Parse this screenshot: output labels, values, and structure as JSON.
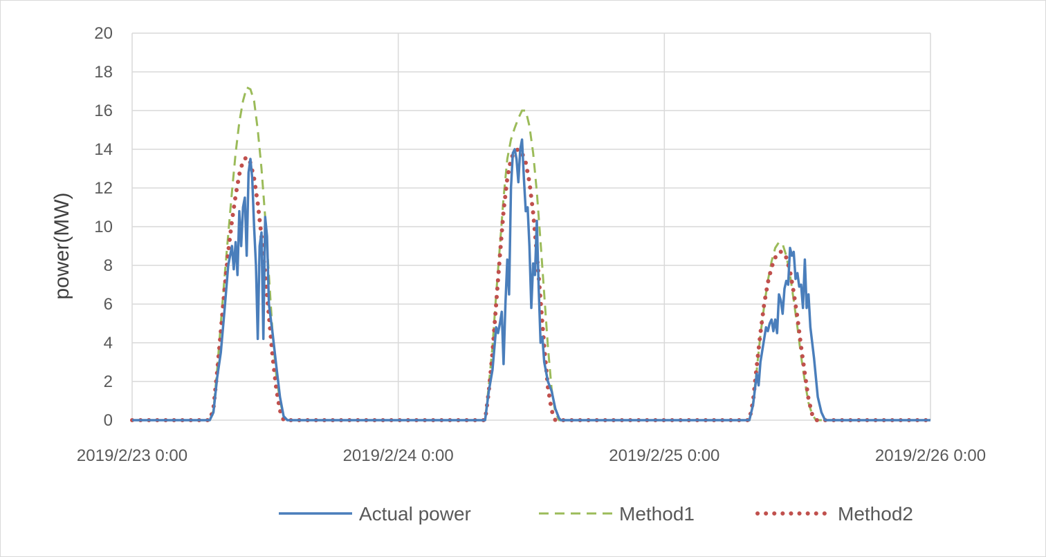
{
  "chart_data": {
    "type": "line",
    "title": "",
    "xlabel": "",
    "ylabel": "power(MW)",
    "ylim": [
      0,
      20
    ],
    "yticks": [
      "0",
      "2",
      "4",
      "6",
      "8",
      "10",
      "12",
      "14",
      "16",
      "18",
      "20"
    ],
    "xlim": [
      "2019-02-23T00:00",
      "2019-02-26T00:00"
    ],
    "xticks": [
      "2019/2/23 0:00",
      "2019/2/24 0:00",
      "2019/2/25 0:00",
      "2019/2/26 0:00"
    ],
    "grid": true,
    "legend_position": "bottom",
    "colors": {
      "actual": "#4a7ebb",
      "method1": "#9bbb59",
      "method2": "#c0504d",
      "grid": "#d9d9d9"
    },
    "series": [
      {
        "key": "actual",
        "name": "Actual power",
        "style": "solid",
        "points": [
          [
            "2019-02-23T00:00",
            0
          ],
          [
            "2019-02-23T07:00",
            0
          ],
          [
            "2019-02-23T07:20",
            0.4
          ],
          [
            "2019-02-23T07:40",
            2.2
          ],
          [
            "2019-02-23T08:00",
            3.5
          ],
          [
            "2019-02-23T08:20",
            5.7
          ],
          [
            "2019-02-23T08:40",
            8.0
          ],
          [
            "2019-02-23T09:00",
            9.0
          ],
          [
            "2019-02-23T09:10",
            7.8
          ],
          [
            "2019-02-23T09:20",
            9.2
          ],
          [
            "2019-02-23T09:30",
            7.5
          ],
          [
            "2019-02-23T09:40",
            10.8
          ],
          [
            "2019-02-23T09:50",
            9.0
          ],
          [
            "2019-02-23T10:00",
            11.0
          ],
          [
            "2019-02-23T10:10",
            11.5
          ],
          [
            "2019-02-23T10:20",
            8.5
          ],
          [
            "2019-02-23T10:30",
            12.8
          ],
          [
            "2019-02-23T10:40",
            13.5
          ],
          [
            "2019-02-23T10:50",
            12.5
          ],
          [
            "2019-02-23T11:00",
            10.0
          ],
          [
            "2019-02-23T11:10",
            8.0
          ],
          [
            "2019-02-23T11:20",
            4.2
          ],
          [
            "2019-02-23T11:30",
            9.0
          ],
          [
            "2019-02-23T11:40",
            9.7
          ],
          [
            "2019-02-23T11:50",
            4.2
          ],
          [
            "2019-02-23T12:00",
            10.5
          ],
          [
            "2019-02-23T12:10",
            9.5
          ],
          [
            "2019-02-23T12:20",
            6.0
          ],
          [
            "2019-02-23T12:40",
            4.5
          ],
          [
            "2019-02-23T13:00",
            2.8
          ],
          [
            "2019-02-23T13:20",
            1.2
          ],
          [
            "2019-02-23T13:40",
            0.2
          ],
          [
            "2019-02-23T14:00",
            0
          ],
          [
            "2019-02-24T07:50",
            0
          ],
          [
            "2019-02-24T08:10",
            1.5
          ],
          [
            "2019-02-24T08:30",
            2.6
          ],
          [
            "2019-02-24T08:50",
            4.8
          ],
          [
            "2019-02-24T09:00",
            4.5
          ],
          [
            "2019-02-24T09:10",
            5.0
          ],
          [
            "2019-02-24T09:20",
            5.6
          ],
          [
            "2019-02-24T09:30",
            2.9
          ],
          [
            "2019-02-24T09:40",
            6.0
          ],
          [
            "2019-02-24T09:50",
            8.3
          ],
          [
            "2019-02-24T10:00",
            6.5
          ],
          [
            "2019-02-24T10:10",
            12.0
          ],
          [
            "2019-02-24T10:20",
            13.8
          ],
          [
            "2019-02-24T10:30",
            14.0
          ],
          [
            "2019-02-24T10:40",
            13.5
          ],
          [
            "2019-02-24T10:50",
            12.3
          ],
          [
            "2019-02-24T11:00",
            14.0
          ],
          [
            "2019-02-24T11:10",
            14.5
          ],
          [
            "2019-02-24T11:20",
            12.5
          ],
          [
            "2019-02-24T11:30",
            10.8
          ],
          [
            "2019-02-24T11:40",
            11.0
          ],
          [
            "2019-02-24T11:50",
            9.0
          ],
          [
            "2019-02-24T12:00",
            5.8
          ],
          [
            "2019-02-24T12:10",
            8.1
          ],
          [
            "2019-02-24T12:20",
            7.5
          ],
          [
            "2019-02-24T12:30",
            10.3
          ],
          [
            "2019-02-24T12:40",
            6.8
          ],
          [
            "2019-02-24T12:50",
            4.0
          ],
          [
            "2019-02-24T13:00",
            4.3
          ],
          [
            "2019-02-24T13:10",
            3.0
          ],
          [
            "2019-02-24T13:30",
            2.0
          ],
          [
            "2019-02-24T13:50",
            1.5
          ],
          [
            "2019-02-24T14:10",
            0.6
          ],
          [
            "2019-02-24T14:30",
            0.1
          ],
          [
            "2019-02-24T14:40",
            0
          ],
          [
            "2019-02-25T07:40",
            0
          ],
          [
            "2019-02-25T08:00",
            0.8
          ],
          [
            "2019-02-25T08:20",
            2.4
          ],
          [
            "2019-02-25T08:30",
            1.8
          ],
          [
            "2019-02-25T08:40",
            3.0
          ],
          [
            "2019-02-25T09:00",
            4.2
          ],
          [
            "2019-02-25T09:10",
            4.8
          ],
          [
            "2019-02-25T09:20",
            4.6
          ],
          [
            "2019-02-25T09:30",
            5.0
          ],
          [
            "2019-02-25T09:40",
            5.2
          ],
          [
            "2019-02-25T09:50",
            4.6
          ],
          [
            "2019-02-25T10:00",
            5.2
          ],
          [
            "2019-02-25T10:10",
            4.5
          ],
          [
            "2019-02-25T10:20",
            6.5
          ],
          [
            "2019-02-25T10:30",
            6.2
          ],
          [
            "2019-02-25T10:40",
            5.5
          ],
          [
            "2019-02-25T10:50",
            6.8
          ],
          [
            "2019-02-25T11:00",
            7.2
          ],
          [
            "2019-02-25T11:10",
            7.0
          ],
          [
            "2019-02-25T11:20",
            8.9
          ],
          [
            "2019-02-25T11:30",
            8.5
          ],
          [
            "2019-02-25T11:40",
            8.7
          ],
          [
            "2019-02-25T11:50",
            7.3
          ],
          [
            "2019-02-25T12:00",
            7.6
          ],
          [
            "2019-02-25T12:10",
            6.9
          ],
          [
            "2019-02-25T12:20",
            7.0
          ],
          [
            "2019-02-25T12:30",
            5.8
          ],
          [
            "2019-02-25T12:40",
            8.3
          ],
          [
            "2019-02-25T12:50",
            5.8
          ],
          [
            "2019-02-25T13:00",
            6.5
          ],
          [
            "2019-02-25T13:10",
            4.8
          ],
          [
            "2019-02-25T13:30",
            3.2
          ],
          [
            "2019-02-25T13:50",
            1.2
          ],
          [
            "2019-02-25T14:10",
            0.4
          ],
          [
            "2019-02-25T14:30",
            0
          ],
          [
            "2019-02-26T00:00",
            0
          ]
        ]
      },
      {
        "key": "method1",
        "name": "Method1",
        "style": "dashed",
        "points": [
          [
            "2019-02-23T00:00",
            0
          ],
          [
            "2019-02-23T07:00",
            0
          ],
          [
            "2019-02-23T07:20",
            0.5
          ],
          [
            "2019-02-23T07:40",
            2.6
          ],
          [
            "2019-02-23T08:00",
            5.0
          ],
          [
            "2019-02-23T08:20",
            7.4
          ],
          [
            "2019-02-23T08:40",
            9.6
          ],
          [
            "2019-02-23T09:00",
            11.8
          ],
          [
            "2019-02-23T09:20",
            13.8
          ],
          [
            "2019-02-23T09:40",
            15.4
          ],
          [
            "2019-02-23T10:00",
            16.5
          ],
          [
            "2019-02-23T10:20",
            17.2
          ],
          [
            "2019-02-23T10:40",
            17.1
          ],
          [
            "2019-02-23T11:00",
            16.5
          ],
          [
            "2019-02-23T11:20",
            15.0
          ],
          [
            "2019-02-23T11:40",
            13.0
          ],
          [
            "2019-02-23T12:00",
            10.5
          ],
          [
            "2019-02-23T12:20",
            7.5
          ],
          [
            "2019-02-23T12:40",
            4.5
          ],
          [
            "2019-02-23T13:00",
            2.3
          ],
          [
            "2019-02-23T13:20",
            1.0
          ],
          [
            "2019-02-23T13:40",
            0.2
          ],
          [
            "2019-02-23T14:00",
            0
          ],
          [
            "2019-02-24T07:50",
            0
          ],
          [
            "2019-02-24T08:10",
            1.8
          ],
          [
            "2019-02-24T08:30",
            3.8
          ],
          [
            "2019-02-24T08:50",
            6.5
          ],
          [
            "2019-02-24T09:10",
            9.0
          ],
          [
            "2019-02-24T09:30",
            11.5
          ],
          [
            "2019-02-24T09:50",
            13.5
          ],
          [
            "2019-02-24T10:10",
            14.5
          ],
          [
            "2019-02-24T10:30",
            15.1
          ],
          [
            "2019-02-24T10:50",
            15.6
          ],
          [
            "2019-02-24T11:10",
            16.0
          ],
          [
            "2019-02-24T11:30",
            16.0
          ],
          [
            "2019-02-24T11:50",
            15.2
          ],
          [
            "2019-02-24T12:10",
            13.8
          ],
          [
            "2019-02-24T12:30",
            11.8
          ],
          [
            "2019-02-24T12:50",
            9.2
          ],
          [
            "2019-02-24T13:10",
            6.5
          ],
          [
            "2019-02-24T13:30",
            3.8
          ],
          [
            "2019-02-24T13:50",
            1.6
          ],
          [
            "2019-02-24T14:10",
            0.4
          ],
          [
            "2019-02-24T14:30",
            0
          ],
          [
            "2019-02-25T07:40",
            0
          ],
          [
            "2019-02-25T08:00",
            0.9
          ],
          [
            "2019-02-25T08:20",
            2.6
          ],
          [
            "2019-02-25T08:40",
            4.4
          ],
          [
            "2019-02-25T09:00",
            5.9
          ],
          [
            "2019-02-25T09:20",
            7.2
          ],
          [
            "2019-02-25T09:40",
            8.2
          ],
          [
            "2019-02-25T10:00",
            8.9
          ],
          [
            "2019-02-25T10:20",
            9.2
          ],
          [
            "2019-02-25T10:40",
            9.1
          ],
          [
            "2019-02-25T11:00",
            8.5
          ],
          [
            "2019-02-25T11:20",
            7.5
          ],
          [
            "2019-02-25T11:40",
            6.2
          ],
          [
            "2019-02-25T12:00",
            4.8
          ],
          [
            "2019-02-25T12:20",
            3.3
          ],
          [
            "2019-02-25T12:40",
            2.0
          ],
          [
            "2019-02-25T13:00",
            0.9
          ],
          [
            "2019-02-25T13:20",
            0.3
          ],
          [
            "2019-02-25T13:40",
            0
          ],
          [
            "2019-02-26T00:00",
            0
          ]
        ]
      },
      {
        "key": "method2",
        "name": "Method2",
        "style": "dotted",
        "points": [
          [
            "2019-02-23T00:00",
            0
          ],
          [
            "2019-02-23T07:00",
            0
          ],
          [
            "2019-02-23T07:20",
            0.6
          ],
          [
            "2019-02-23T07:40",
            2.5
          ],
          [
            "2019-02-23T08:00",
            4.6
          ],
          [
            "2019-02-23T08:20",
            6.8
          ],
          [
            "2019-02-23T08:40",
            8.7
          ],
          [
            "2019-02-23T09:00",
            10.3
          ],
          [
            "2019-02-23T09:20",
            11.6
          ],
          [
            "2019-02-23T09:40",
            12.7
          ],
          [
            "2019-02-23T10:00",
            13.4
          ],
          [
            "2019-02-23T10:20",
            13.6
          ],
          [
            "2019-02-23T10:40",
            13.3
          ],
          [
            "2019-02-23T11:00",
            12.5
          ],
          [
            "2019-02-23T11:20",
            11.2
          ],
          [
            "2019-02-23T11:40",
            9.5
          ],
          [
            "2019-02-23T12:00",
            7.5
          ],
          [
            "2019-02-23T12:20",
            5.4
          ],
          [
            "2019-02-23T12:40",
            3.3
          ],
          [
            "2019-02-23T13:00",
            1.6
          ],
          [
            "2019-02-23T13:20",
            0.5
          ],
          [
            "2019-02-23T13:40",
            0
          ],
          [
            "2019-02-24T07:50",
            0
          ],
          [
            "2019-02-24T08:10",
            1.5
          ],
          [
            "2019-02-24T08:30",
            3.5
          ],
          [
            "2019-02-24T08:50",
            6.0
          ],
          [
            "2019-02-24T09:10",
            8.5
          ],
          [
            "2019-02-24T09:30",
            10.8
          ],
          [
            "2019-02-24T09:50",
            12.5
          ],
          [
            "2019-02-24T10:10",
            13.5
          ],
          [
            "2019-02-24T10:30",
            13.9
          ],
          [
            "2019-02-24T10:50",
            14.0
          ],
          [
            "2019-02-24T11:10",
            13.8
          ],
          [
            "2019-02-24T11:30",
            13.3
          ],
          [
            "2019-02-24T11:50",
            12.3
          ],
          [
            "2019-02-24T12:10",
            10.7
          ],
          [
            "2019-02-24T12:30",
            8.6
          ],
          [
            "2019-02-24T12:50",
            6.2
          ],
          [
            "2019-02-24T13:10",
            3.8
          ],
          [
            "2019-02-24T13:30",
            1.7
          ],
          [
            "2019-02-24T13:50",
            0.5
          ],
          [
            "2019-02-24T14:10",
            0
          ],
          [
            "2019-02-25T07:40",
            0
          ],
          [
            "2019-02-25T08:00",
            1.0
          ],
          [
            "2019-02-25T08:20",
            2.8
          ],
          [
            "2019-02-25T08:40",
            4.5
          ],
          [
            "2019-02-25T09:00",
            6.0
          ],
          [
            "2019-02-25T09:20",
            7.1
          ],
          [
            "2019-02-25T09:40",
            7.9
          ],
          [
            "2019-02-25T10:00",
            8.4
          ],
          [
            "2019-02-25T10:20",
            8.7
          ],
          [
            "2019-02-25T10:40",
            8.7
          ],
          [
            "2019-02-25T11:00",
            8.4
          ],
          [
            "2019-02-25T11:20",
            7.7
          ],
          [
            "2019-02-25T11:40",
            6.6
          ],
          [
            "2019-02-25T12:00",
            5.3
          ],
          [
            "2019-02-25T12:20",
            3.8
          ],
          [
            "2019-02-25T12:40",
            2.4
          ],
          [
            "2019-02-25T13:00",
            1.1
          ],
          [
            "2019-02-25T13:20",
            0.3
          ],
          [
            "2019-02-25T13:40",
            0
          ],
          [
            "2019-02-26T00:00",
            0
          ]
        ]
      }
    ]
  }
}
